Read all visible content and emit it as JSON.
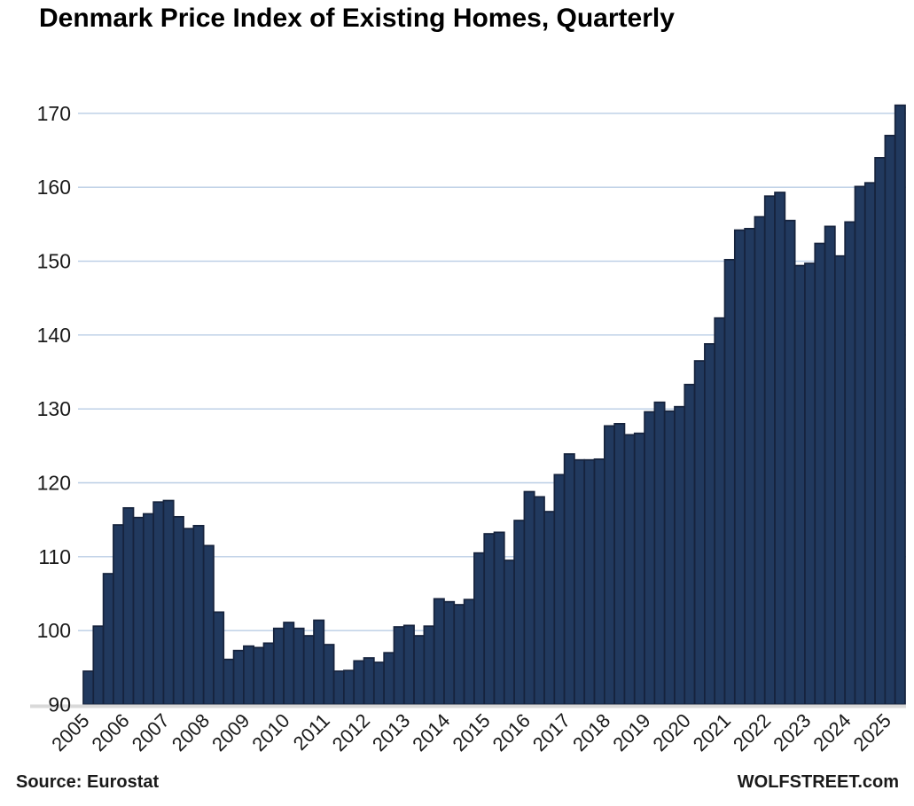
{
  "header": {
    "title": "Denmark Price Index of Existing Homes, Quarterly"
  },
  "footer": {
    "source": "Source: Eurostat",
    "watermark": "WOLFSTREET.com"
  },
  "chart_data": {
    "type": "bar",
    "title": "Denmark Price Index of Existing Homes, Quarterly",
    "xlabel": "",
    "ylabel": "",
    "ylim": [
      90,
      172
    ],
    "yticks": [
      90,
      100,
      110,
      120,
      130,
      140,
      150,
      160,
      170
    ],
    "grid": true,
    "legend_position": "none",
    "year_ticks": [
      "2005",
      "2006",
      "2007",
      "2008",
      "2009",
      "2010",
      "2011",
      "2012",
      "2013",
      "2014",
      "2015",
      "2016",
      "2017",
      "2018",
      "2019",
      "2020",
      "2021",
      "2022",
      "2023",
      "2024",
      "2025"
    ],
    "x_quarters": [
      "2005Q1",
      "2005Q2",
      "2005Q3",
      "2005Q4",
      "2006Q1",
      "2006Q2",
      "2006Q3",
      "2006Q4",
      "2007Q1",
      "2007Q2",
      "2007Q3",
      "2007Q4",
      "2008Q1",
      "2008Q2",
      "2008Q3",
      "2008Q4",
      "2009Q1",
      "2009Q2",
      "2009Q3",
      "2009Q4",
      "2010Q1",
      "2010Q2",
      "2010Q3",
      "2010Q4",
      "2011Q1",
      "2011Q2",
      "2011Q3",
      "2011Q4",
      "2012Q1",
      "2012Q2",
      "2012Q3",
      "2012Q4",
      "2013Q1",
      "2013Q2",
      "2013Q3",
      "2013Q4",
      "2014Q1",
      "2014Q2",
      "2014Q3",
      "2014Q4",
      "2015Q1",
      "2015Q2",
      "2015Q3",
      "2015Q4",
      "2016Q1",
      "2016Q2",
      "2016Q3",
      "2016Q4",
      "2017Q1",
      "2017Q2",
      "2017Q3",
      "2017Q4",
      "2018Q1",
      "2018Q2",
      "2018Q3",
      "2018Q4",
      "2019Q1",
      "2019Q2",
      "2019Q3",
      "2019Q4",
      "2020Q1",
      "2020Q2",
      "2020Q3",
      "2020Q4",
      "2021Q1",
      "2021Q2",
      "2021Q3",
      "2021Q4",
      "2022Q1",
      "2022Q2",
      "2022Q3",
      "2022Q4",
      "2023Q1",
      "2023Q2",
      "2023Q3",
      "2023Q4",
      "2024Q1",
      "2024Q2",
      "2024Q3",
      "2024Q4",
      "2025Q1",
      "2025Q2"
    ],
    "values": [
      94.5,
      100.6,
      107.7,
      114.3,
      116.6,
      115.3,
      115.8,
      117.4,
      117.6,
      115.4,
      113.8,
      114.2,
      111.5,
      102.5,
      96.1,
      97.3,
      97.9,
      97.7,
      98.3,
      100.3,
      101.1,
      100.3,
      99.3,
      101.4,
      98.1,
      94.5,
      94.6,
      95.9,
      96.3,
      95.7,
      97.0,
      100.5,
      100.7,
      99.3,
      100.6,
      104.3,
      103.9,
      103.5,
      104.2,
      110.5,
      113.1,
      113.3,
      109.5,
      114.9,
      118.8,
      118.1,
      116.1,
      121.1,
      123.9,
      123.1,
      123.1,
      123.2,
      127.7,
      128.0,
      126.5,
      126.7,
      129.6,
      130.9,
      129.7,
      130.3,
      133.3,
      136.5,
      138.8,
      142.3,
      150.2,
      154.2,
      154.4,
      156.0,
      158.8,
      159.3,
      155.5,
      149.4,
      149.7,
      152.4,
      154.7,
      150.7,
      155.3,
      160.1,
      160.6,
      164.0,
      167.0,
      171.1
    ],
    "colors": {
      "bar_fill": "#21395e",
      "bar_border": "#16233d",
      "gridline": "#b9cde5",
      "axis_line": "#d9d9d9",
      "title_text": "#000000",
      "tick_text": "#1a1a1a"
    }
  }
}
